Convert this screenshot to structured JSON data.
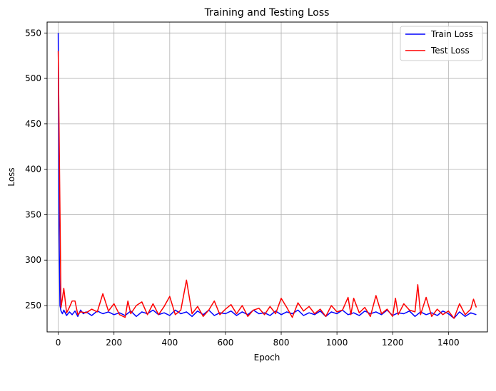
{
  "chart_data": {
    "type": "line",
    "title": "Training and Testing Loss",
    "xlabel": "Epoch",
    "ylabel": "Loss",
    "xlim": [
      -40,
      1540
    ],
    "ylim": [
      221,
      562
    ],
    "xticks": [
      0,
      200,
      400,
      600,
      800,
      1000,
      1200,
      1400
    ],
    "yticks": [
      250,
      300,
      350,
      400,
      450,
      500,
      550
    ],
    "grid": true,
    "legend_position": "top-right",
    "series": [
      {
        "name": "Train Loss",
        "color": "#0000ff",
        "x": [
          0,
          3,
          6,
          10,
          15,
          20,
          30,
          40,
          50,
          60,
          70,
          80,
          90,
          100,
          120,
          140,
          160,
          180,
          200,
          220,
          240,
          260,
          280,
          300,
          320,
          340,
          360,
          380,
          400,
          420,
          440,
          460,
          480,
          500,
          520,
          540,
          560,
          580,
          600,
          620,
          640,
          660,
          680,
          700,
          720,
          740,
          760,
          780,
          800,
          820,
          840,
          860,
          880,
          900,
          920,
          940,
          960,
          980,
          1000,
          1020,
          1040,
          1060,
          1080,
          1100,
          1120,
          1140,
          1160,
          1180,
          1200,
          1220,
          1240,
          1260,
          1280,
          1300,
          1320,
          1340,
          1360,
          1380,
          1400,
          1420,
          1440,
          1460,
          1480,
          1500
        ],
        "y": [
          550,
          330,
          250,
          244,
          241,
          245,
          239,
          243,
          240,
          244,
          238,
          245,
          241,
          243,
          239,
          244,
          241,
          243,
          240,
          242,
          239,
          244,
          238,
          243,
          241,
          245,
          240,
          242,
          239,
          245,
          241,
          243,
          238,
          244,
          240,
          245,
          239,
          242,
          241,
          244,
          239,
          243,
          240,
          245,
          241,
          242,
          239,
          244,
          240,
          243,
          241,
          245,
          239,
          242,
          240,
          244,
          238,
          243,
          241,
          245,
          240,
          242,
          239,
          244,
          241,
          243,
          240,
          245,
          239,
          242,
          241,
          244,
          238,
          243,
          240,
          242,
          239,
          244,
          241,
          236,
          243,
          238,
          242,
          240
        ]
      },
      {
        "name": "Test Loss",
        "color": "#ff0000",
        "x": [
          0,
          10,
          15,
          20,
          30,
          40,
          50,
          60,
          70,
          80,
          100,
          120,
          140,
          160,
          180,
          200,
          220,
          240,
          250,
          260,
          280,
          300,
          320,
          340,
          360,
          380,
          400,
          420,
          440,
          460,
          480,
          500,
          520,
          540,
          560,
          580,
          600,
          620,
          640,
          660,
          680,
          700,
          720,
          740,
          760,
          780,
          800,
          820,
          840,
          860,
          880,
          900,
          920,
          940,
          960,
          980,
          1000,
          1020,
          1040,
          1050,
          1060,
          1080,
          1100,
          1120,
          1140,
          1160,
          1180,
          1200,
          1210,
          1220,
          1240,
          1260,
          1280,
          1290,
          1300,
          1320,
          1340,
          1360,
          1380,
          1400,
          1420,
          1440,
          1460,
          1480,
          1490,
          1500
        ],
        "y": [
          530,
          248,
          258,
          269,
          242,
          248,
          255,
          255,
          240,
          243,
          242,
          246,
          243,
          263,
          244,
          252,
          240,
          237,
          255,
          241,
          250,
          254,
          240,
          252,
          240,
          249,
          260,
          240,
          245,
          278,
          241,
          249,
          238,
          245,
          255,
          240,
          246,
          251,
          241,
          250,
          238,
          245,
          247,
          240,
          249,
          241,
          258,
          248,
          237,
          253,
          244,
          249,
          241,
          246,
          238,
          250,
          243,
          245,
          259,
          240,
          258,
          242,
          248,
          238,
          261,
          241,
          246,
          238,
          258,
          240,
          252,
          245,
          243,
          273,
          240,
          259,
          238,
          246,
          240,
          244,
          236,
          252,
          240,
          246,
          257,
          248
        ]
      }
    ]
  }
}
